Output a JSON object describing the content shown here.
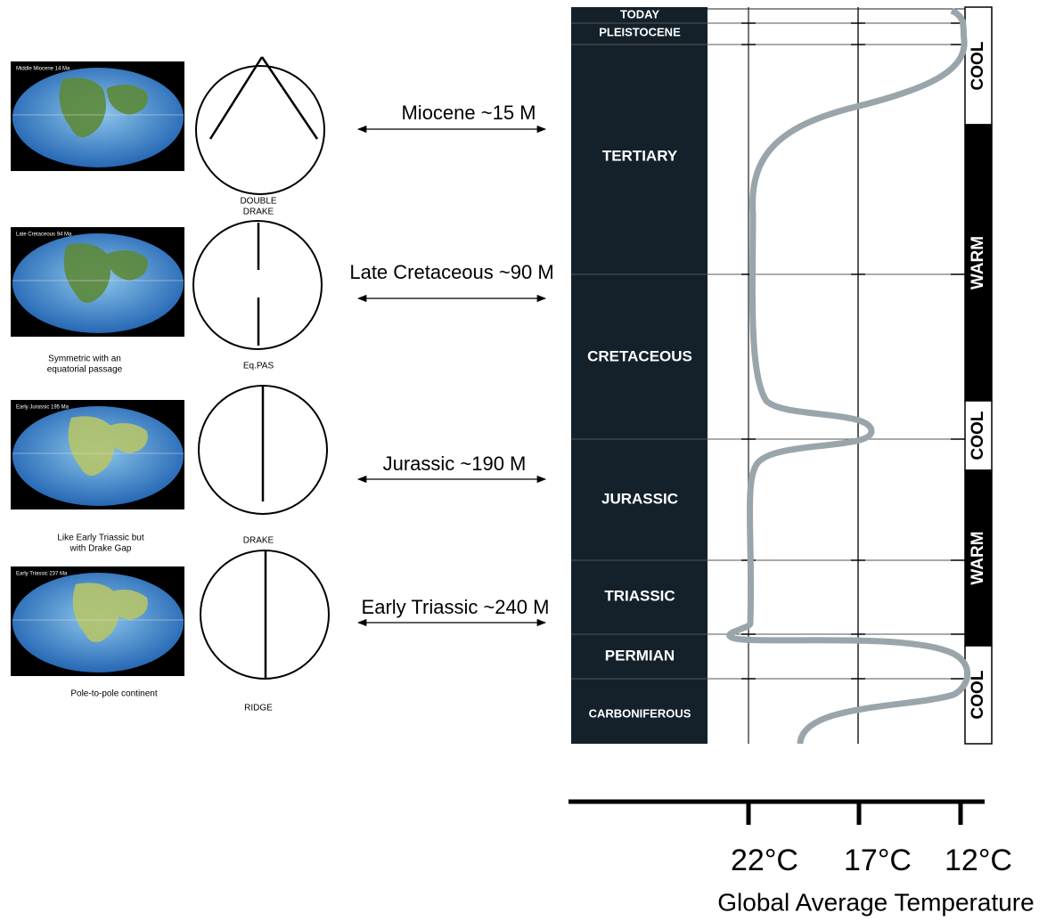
{
  "panels": [
    {
      "map_title": "Middle Miocene  14 Ma",
      "caption": [],
      "circle_label": [
        "DOUBLE",
        "DRAKE"
      ],
      "arrow_label": "Miocene ~15 M"
    },
    {
      "map_title": "Late Cretaceous  94 Ma",
      "caption": [
        "Symmetric with an",
        "equatorial passage"
      ],
      "circle_label": [
        "Eq.PAS"
      ],
      "arrow_label": "Late Cretaceous ~90 M"
    },
    {
      "map_title": "Early Jurassic  195 Ma",
      "caption": [
        "Like Early Triassic but",
        "with Drake Gap"
      ],
      "circle_label": [
        "DRAKE"
      ],
      "arrow_label": "Jurassic ~190 M"
    },
    {
      "map_title": "Early Triassic  237 Ma",
      "caption": [
        "Pole-to-pole continent"
      ],
      "circle_label": [
        "RIDGE"
      ],
      "arrow_label": "Early Triassic ~240 M"
    }
  ],
  "eras": [
    "TODAY",
    "PLEISTOCENE",
    "TERTIARY",
    "CRETACEOUS",
    "JURASSIC",
    "TRIASSIC",
    "PERMIAN",
    "CARBONIFEROUS"
  ],
  "climate": [
    "COOL",
    "WARM",
    "COOL",
    "WARM",
    "COOL"
  ],
  "temperature_axis": {
    "ticks": [
      "22°C",
      "17°C",
      "12°C"
    ],
    "title": "Global Average Temperature"
  }
}
